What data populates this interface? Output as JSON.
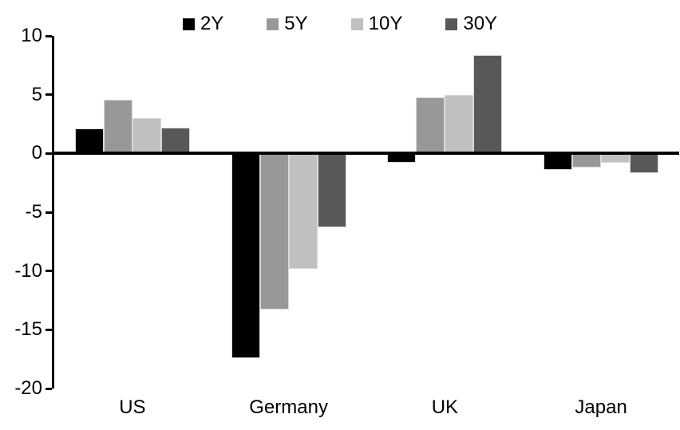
{
  "chart_data": {
    "type": "bar",
    "title": "",
    "categories": [
      "US",
      "Germany",
      "UK",
      "Japan"
    ],
    "series": [
      {
        "name": "2Y",
        "color": "#000000",
        "values": [
          2.1,
          -17.4,
          -0.8,
          -1.4
        ]
      },
      {
        "name": "5Y",
        "color": "#989898",
        "values": [
          4.6,
          -13.3,
          4.8,
          -1.2
        ]
      },
      {
        "name": "10Y",
        "color": "#c0c0c0",
        "values": [
          3.0,
          -9.8,
          5.0,
          -0.8
        ]
      },
      {
        "name": "30Y",
        "color": "#585858",
        "values": [
          2.2,
          -6.3,
          8.4,
          -1.7
        ]
      }
    ],
    "ylim": [
      -20,
      10
    ],
    "yticks": [
      10,
      5,
      0,
      -5,
      -10,
      -15,
      -20
    ],
    "grid": false,
    "legend_position": "top",
    "axis_color": "#000000",
    "bar_border_color": "#d9d9d9",
    "background": "#ffffff"
  }
}
